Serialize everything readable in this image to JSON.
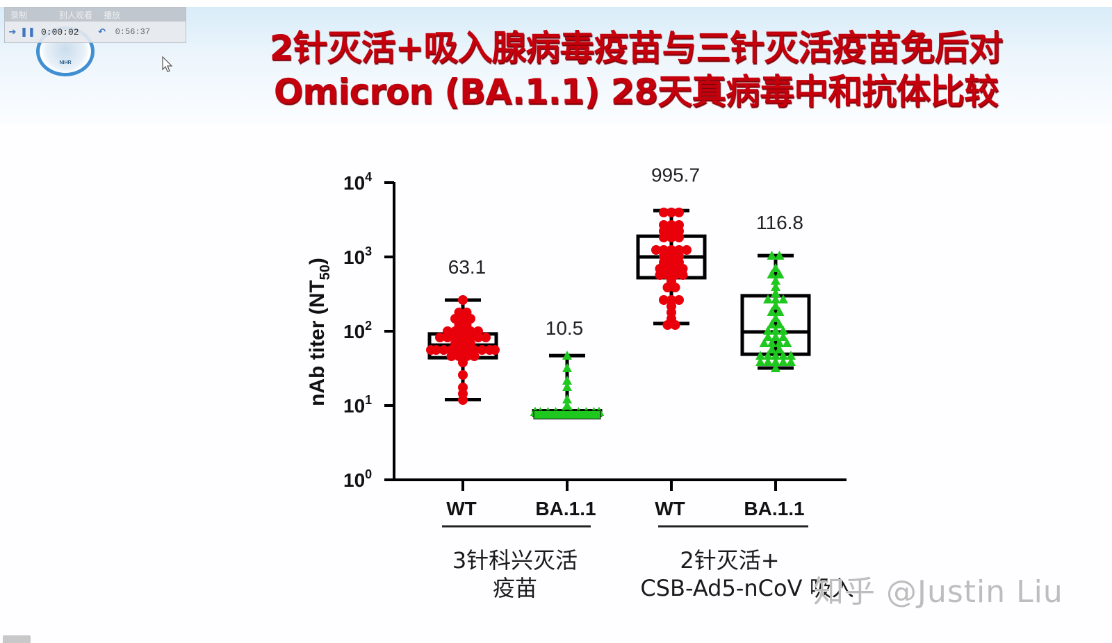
{
  "player": {
    "tab_label": "录制",
    "tab2_label": "别人观看",
    "tab3_label": "播放",
    "elapsed": "0:00:02",
    "total": "0:56:37",
    "play_icon": "arrow-right-icon",
    "pause_icon": "pause-icon",
    "rewind_icon": "undo-icon"
  },
  "logo": {
    "text": "NIHR"
  },
  "title": {
    "line1": "2针灭活+吸入腺病毒疫苗与三针灭活疫苗免后对",
    "line2": "Omicron (BA.1.1) 28天真病毒中和抗体比较"
  },
  "watermark": "知乎 @Justin Liu",
  "colors": {
    "title": "#c4000c",
    "wt_points": "#e8000a",
    "ba_points": "#1ec81e",
    "axis": "#000000"
  },
  "chart_data": {
    "type": "box",
    "title": "2针灭活+吸入腺病毒疫苗与三针灭活疫苗免后对 Omicron (BA.1.1) 28天真病毒中和抗体比较",
    "ylabel": "nAb titer (NT50)",
    "yscale": "log",
    "ylim": [
      1,
      10000
    ],
    "yticks": [
      "10⁰",
      "10¹",
      "10²",
      "10³",
      "10⁴"
    ],
    "grid": false,
    "categories": [
      "WT",
      "BA.1.1",
      "WT",
      "BA.1.1"
    ],
    "groups": [
      {
        "label_line1": "3针科兴灭活",
        "label_line2": "疫苗",
        "members": [
          0,
          1
        ]
      },
      {
        "label_line1": "2针灭活+",
        "label_line2": "CSB-Ad5-nCoV 吸入",
        "members": [
          2,
          3
        ]
      }
    ],
    "series": [
      {
        "name": "3针科兴灭活疫苗 - WT",
        "variant": "WT",
        "marker": "circle",
        "color": "#e8000a",
        "gmt_label": "63.1",
        "min": 12,
        "q1": 44,
        "median": 65,
        "q3": 92,
        "max": 263
      },
      {
        "name": "3针科兴灭活疫苗 - BA.1.1",
        "variant": "BA.1.1",
        "marker": "triangle",
        "color": "#1ec81e",
        "gmt_label": "10.5",
        "min": 7.5,
        "q1": 7.5,
        "median": 7.5,
        "q3": 8.5,
        "max": 47
      },
      {
        "name": "2针灭活+CSB-Ad5-nCoV 吸入 - WT",
        "variant": "WT",
        "marker": "circle",
        "color": "#e8000a",
        "gmt_label": "995.7",
        "min": 127,
        "q1": 525,
        "median": 1000,
        "q3": 1900,
        "max": 4200
      },
      {
        "name": "2针灭活+CSB-Ad5-nCoV 吸入 - BA.1.1",
        "variant": "BA.1.1",
        "marker": "triangle",
        "color": "#1ec81e",
        "gmt_label": "116.8",
        "min": 32,
        "q1": 49,
        "median": 98,
        "q3": 300,
        "max": 1040
      }
    ]
  }
}
